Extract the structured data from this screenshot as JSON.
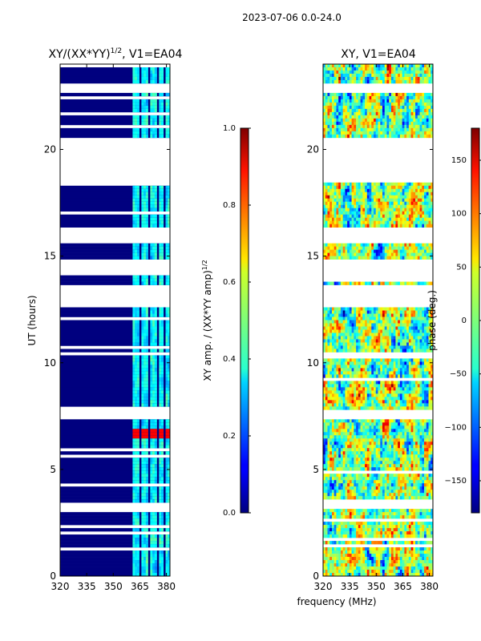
{
  "suptitle": "2023-07-06 0.0-24.0",
  "shared_xlabel": "frequency (MHz)",
  "chart_data": [
    {
      "type": "heatmap",
      "title_main": "XY/(XX*YY)",
      "title_exp": "1/2",
      "title_tail": ", V1=EA04",
      "xlabel": "",
      "ylabel": "UT (hours)",
      "xlim": [
        320,
        382
      ],
      "ylim": [
        0,
        24
      ],
      "xticks": [
        "320",
        "335",
        "350",
        "365",
        "380"
      ],
      "xtick_values": [
        320,
        335,
        350,
        365,
        380
      ],
      "yticks": [
        "0",
        "5",
        "10",
        "15",
        "20"
      ],
      "ytick_values": [
        0,
        5,
        10,
        15,
        20
      ],
      "blank_ut_bands": [
        [
          3.1,
          3.4
        ],
        [
          7.3,
          7.8
        ],
        [
          12.6,
          13.6
        ],
        [
          14.1,
          14.9
        ],
        [
          15.6,
          16.4
        ],
        [
          18.5,
          20.5
        ],
        [
          22.6,
          23.1
        ]
      ],
      "active_freq_bands_mhz": [
        [
          360.5,
          364.5
        ],
        [
          366,
          369
        ],
        [
          371,
          374
        ],
        [
          376,
          378.5
        ],
        [
          379,
          382
        ]
      ],
      "colorbar": {
        "label_main": "XY amp. / (XX*YY amp)",
        "label_exp": "1/2",
        "range": [
          0.0,
          1.0
        ],
        "ticks": [
          "0.0",
          "0.2",
          "0.4",
          "0.6",
          "0.8",
          "1.0"
        ],
        "tick_values": [
          0.0,
          0.2,
          0.4,
          0.6,
          0.8,
          1.0
        ]
      }
    },
    {
      "type": "heatmap",
      "title_main": "XY, V1=EA04",
      "xlabel": "frequency (MHz)",
      "ylabel": "",
      "xlim": [
        320,
        382
      ],
      "ylim": [
        0,
        24
      ],
      "xticks": [
        "320",
        "335",
        "350",
        "365",
        "380"
      ],
      "xtick_values": [
        320,
        335,
        350,
        365,
        380
      ],
      "yticks": [
        "0",
        "5",
        "10",
        "15",
        "20"
      ],
      "ytick_values": [
        0,
        5,
        10,
        15,
        20
      ],
      "colorbar": {
        "label_main": "phase (deg.)",
        "range": [
          -180,
          180
        ],
        "ticks": [
          "−150",
          "−100",
          "−50",
          "0",
          "50",
          "100",
          "150"
        ],
        "tick_values": [
          -150,
          -100,
          -50,
          0,
          50,
          100,
          150
        ]
      }
    }
  ]
}
